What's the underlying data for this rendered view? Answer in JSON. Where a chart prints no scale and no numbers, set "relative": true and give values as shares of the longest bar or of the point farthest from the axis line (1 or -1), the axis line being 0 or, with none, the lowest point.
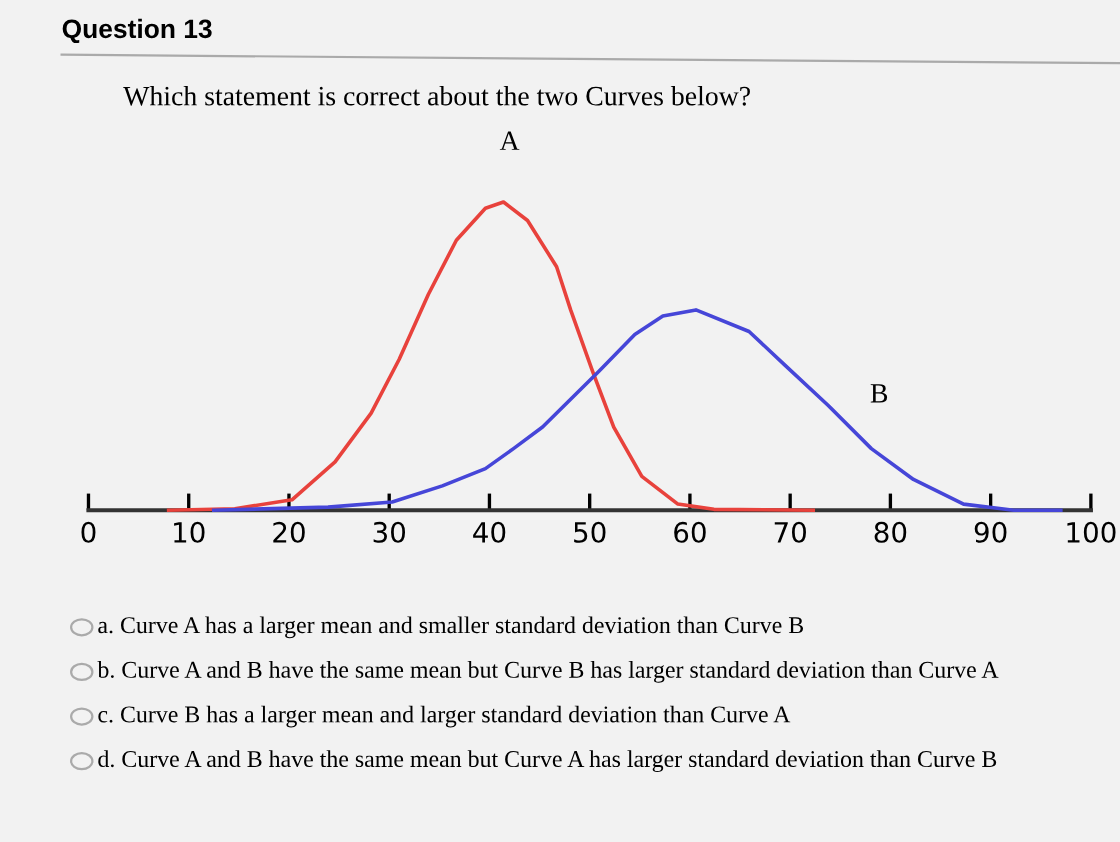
{
  "chart_data": {
    "type": "line",
    "title": "Question 13",
    "subtitle": "Which statement is correct about the two Curves below?",
    "relative": true,
    "xlim": [
      0,
      100
    ],
    "xticks": [
      0,
      10,
      20,
      30,
      40,
      50,
      60,
      70,
      80,
      90,
      100
    ],
    "series": [
      {
        "color": "#e8423c",
        "x": [
          8,
          14.6,
          20.3,
          24.6,
          28.2,
          31,
          33.9,
          36.7,
          39.6,
          41.4,
          43.8,
          46.7,
          48.1,
          50.3,
          52.4,
          55.2,
          58.8,
          62.4,
          72.3
        ],
        "values": [
          0,
          0.005,
          0.034,
          0.157,
          0.315,
          0.49,
          0.7,
          0.876,
          0.98,
          1,
          0.94,
          0.79,
          0.65,
          0.45,
          0.27,
          0.11,
          0.02,
          0.003,
          0
        ]
      },
      {
        "color": "#4646d8",
        "x": [
          12.5,
          23.9,
          30.3,
          35.3,
          39.6,
          42.4,
          45.3,
          48.1,
          50.9,
          54.5,
          57.3,
          60.6,
          65.9,
          69.5,
          73.8,
          78.1,
          82.3,
          87.3,
          92.3,
          97
        ],
        "values": [
          0,
          0.01,
          0.027,
          0.079,
          0.135,
          0.2,
          0.27,
          0.36,
          0.45,
          0.57,
          0.63,
          0.65,
          0.58,
          0.47,
          0.34,
          0.2,
          0.1,
          0.02,
          0,
          0
        ]
      }
    ],
    "annotations": [
      "A",
      "B",
      "a. Curve A has a larger mean and smaller standard deviation than Curve B",
      "b. Curve A and B have the same mean but Curve B has larger standard deviation than Curve A",
      "c. Curve B has a larger mean and larger standard deviation than Curve A",
      "d. Curve A and B have the same mean but Curve A has larger standard deviation than Curve B"
    ]
  }
}
